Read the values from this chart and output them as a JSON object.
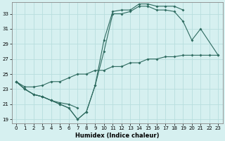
{
  "xlabel": "Humidex (Indice chaleur)",
  "bg_color": "#d6f0f0",
  "grid_color": "#b8dede",
  "line_color": "#2e6b60",
  "xlim": [
    -0.5,
    23.5
  ],
  "ylim": [
    18.5,
    34.5
  ],
  "xticks": [
    0,
    1,
    2,
    3,
    4,
    5,
    6,
    7,
    8,
    9,
    10,
    11,
    12,
    13,
    14,
    15,
    16,
    17,
    18,
    19,
    20,
    21,
    22,
    23
  ],
  "yticks": [
    19,
    21,
    23,
    25,
    27,
    29,
    31,
    33
  ],
  "curve_top_x": [
    0,
    1,
    2,
    3,
    4,
    5,
    6,
    7,
    8,
    9,
    10,
    11,
    12,
    13,
    14,
    15,
    16,
    17,
    18,
    19
  ],
  "curve_top_y": [
    24.0,
    23.0,
    22.3,
    22.0,
    21.5,
    21.0,
    20.5,
    19.0,
    20.0,
    23.5,
    29.5,
    33.3,
    33.5,
    33.5,
    34.3,
    34.3,
    34.0,
    34.0,
    34.0,
    33.5
  ],
  "curve_mid_x": [
    0,
    1,
    2,
    3,
    4,
    5,
    6,
    7,
    8,
    9,
    10,
    11,
    12,
    13,
    14,
    15,
    16,
    17,
    18,
    19,
    20,
    21,
    23
  ],
  "curve_mid_y": [
    24.0,
    23.0,
    22.3,
    22.0,
    21.5,
    21.0,
    20.5,
    19.0,
    20.0,
    23.5,
    28.0,
    33.0,
    33.0,
    33.3,
    34.0,
    34.0,
    33.5,
    33.5,
    33.3,
    32.0,
    29.5,
    31.0,
    27.5
  ],
  "curve_diag_x": [
    0,
    1,
    2,
    3,
    4,
    5,
    6,
    7,
    8,
    9,
    10,
    11,
    12,
    13,
    14,
    15,
    16,
    17,
    18,
    19,
    20,
    21,
    22,
    23
  ],
  "curve_diag_y": [
    24.0,
    23.3,
    23.3,
    23.5,
    24.0,
    24.0,
    24.5,
    25.0,
    25.0,
    25.5,
    25.5,
    26.0,
    26.0,
    26.5,
    26.5,
    27.0,
    27.0,
    27.3,
    27.3,
    27.5,
    27.5,
    27.5,
    27.5,
    27.5
  ],
  "curve_bot_x": [
    0,
    1,
    2,
    3,
    4,
    5,
    6,
    7
  ],
  "curve_bot_y": [
    24.0,
    23.0,
    22.3,
    22.0,
    21.5,
    21.2,
    21.0,
    20.5
  ]
}
